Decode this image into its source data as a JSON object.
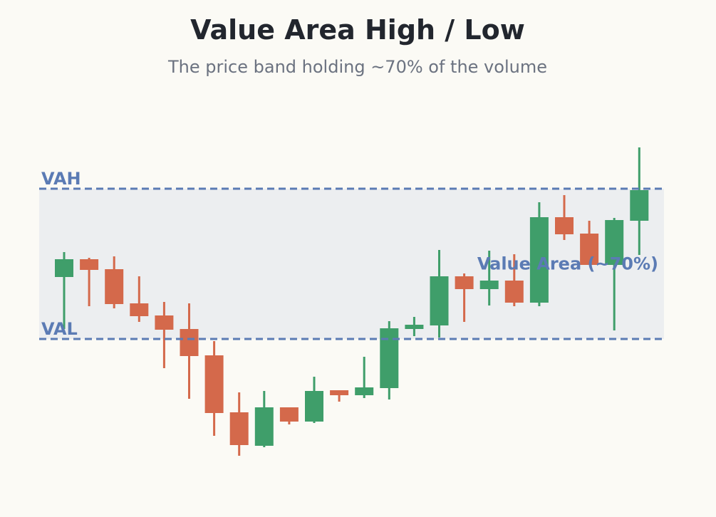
{
  "chart_data": {
    "type": "candlestick",
    "title": "Value Area High / Low",
    "subtitle": "The price band holding ~70% of the volume",
    "ylim": [
      0,
      50
    ],
    "up_color": "#3f9e6a",
    "down_color": "#d4694b",
    "open": [
      31.1,
      33.6,
      32.2,
      27.4,
      25.7,
      23.8,
      20.1,
      12.1,
      7.4,
      12.8,
      10.8,
      15.2,
      14.5,
      15.5,
      23.8,
      24.3,
      31.2,
      29.4,
      30.6,
      27.5,
      39.5,
      37.2,
      32.8,
      39.0
    ],
    "high": [
      34.6,
      33.8,
      34.0,
      31.2,
      27.6,
      27.4,
      22.1,
      14.9,
      15.1,
      12.8,
      17.1,
      15.2,
      19.9,
      24.9,
      25.5,
      34.9,
      31.6,
      34.8,
      34.3,
      41.6,
      42.6,
      39.0,
      39.4,
      49.3
    ],
    "low": [
      23.8,
      27.0,
      26.7,
      24.8,
      18.3,
      14.0,
      8.8,
      6.0,
      7.2,
      10.4,
      10.6,
      13.6,
      14.1,
      13.9,
      22.8,
      22.6,
      24.8,
      27.1,
      27.0,
      27.0,
      36.3,
      32.8,
      23.6,
      34.2
    ],
    "close": [
      33.6,
      32.1,
      27.3,
      25.6,
      23.7,
      20.0,
      12.0,
      7.5,
      12.8,
      10.8,
      15.1,
      14.5,
      15.6,
      23.9,
      24.4,
      31.2,
      29.4,
      30.6,
      27.5,
      39.5,
      37.1,
      32.8,
      39.1,
      43.3
    ],
    "value_area": {
      "high": 43.5,
      "low": 22.4,
      "high_label": "VAH",
      "low_label": "VAL",
      "label": "Value Area (~70%)",
      "color": "#5b7bb4",
      "fill": "#eceef0"
    }
  }
}
